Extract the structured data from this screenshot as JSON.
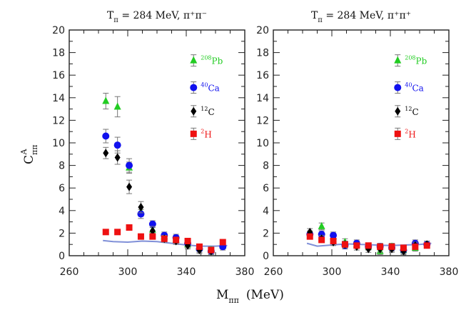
{
  "chart_data": {
    "type": "scatter",
    "xlabel_main": "M",
    "xlabel_sub": "ππ",
    "xlabel_unit": "(MeV)",
    "ylabel_main": "C",
    "ylabel_sup": "A",
    "ylabel_sub": "ππ",
    "xlim": [
      260,
      380
    ],
    "ylim": [
      0,
      20
    ],
    "xticks": [
      "260",
      "300",
      "340",
      "380"
    ],
    "yticks": [
      "0",
      "2",
      "4",
      "6",
      "8",
      "10",
      "12",
      "14",
      "16",
      "18",
      "20"
    ],
    "colors": {
      "Pb": "#22cc22",
      "Ca": "#1111ee",
      "C": "#000000",
      "H": "#ee1111",
      "curve": "#8090d8"
    },
    "panels": [
      {
        "title_T": "T",
        "title_Tsub": "π",
        "title_text": " = 284  MeV,  π⁺π⁻",
        "legend": [
          {
            "key": "Pb",
            "marker": "triangle",
            "sup": "208",
            "label": "Pb"
          },
          {
            "key": "Ca",
            "marker": "circle",
            "sup": "40",
            "label": "Ca"
          },
          {
            "key": "C",
            "marker": "diamond",
            "sup": "12",
            "label": "C"
          },
          {
            "key": "H",
            "marker": "square",
            "sup": "2",
            "label": "H"
          }
        ],
        "series": [
          {
            "key": "Pb",
            "marker": "triangle",
            "points": [
              [
                285,
                13.7,
                0.7
              ],
              [
                293,
                13.2,
                0.9
              ],
              [
                301,
                7.8,
                0.5
              ],
              [
                309,
                3.9,
                0.4
              ],
              [
                317,
                2.3,
                0.3
              ],
              [
                325,
                1.7,
                0.3
              ],
              [
                333,
                1.4,
                0.3
              ],
              [
                341,
                1.0,
                0.3
              ],
              [
                349,
                0.7,
                0.3
              ],
              [
                357,
                0.5,
                0.3
              ],
              [
                365,
                0.9,
                0.3
              ]
            ]
          },
          {
            "key": "Ca",
            "marker": "circle",
            "points": [
              [
                285,
                10.6,
                0.6
              ],
              [
                293,
                9.8,
                0.7
              ],
              [
                301,
                8.0,
                0.6
              ],
              [
                309,
                3.7,
                0.4
              ],
              [
                317,
                2.8,
                0.3
              ],
              [
                325,
                1.8,
                0.3
              ],
              [
                333,
                1.6,
                0.3
              ],
              [
                341,
                1.1,
                0.3
              ],
              [
                349,
                0.6,
                0.3
              ],
              [
                357,
                0.4,
                0.3
              ],
              [
                365,
                0.8,
                0.3
              ]
            ]
          },
          {
            "key": "C",
            "marker": "diamond",
            "points": [
              [
                285,
                9.1,
                0.5
              ],
              [
                293,
                8.7,
                0.6
              ],
              [
                301,
                6.1,
                0.6
              ],
              [
                309,
                4.3,
                0.5
              ],
              [
                317,
                2.2,
                0.4
              ],
              [
                325,
                1.5,
                0.3
              ],
              [
                333,
                1.3,
                0.3
              ],
              [
                341,
                0.9,
                0.3
              ],
              [
                349,
                0.5,
                0.3
              ],
              [
                357,
                0.4,
                0.3
              ]
            ]
          },
          {
            "key": "H",
            "marker": "square",
            "points": [
              [
                285,
                2.1,
                0.2
              ],
              [
                293,
                2.1,
                0.2
              ],
              [
                301,
                2.5,
                0.2
              ],
              [
                309,
                1.7,
                0.2
              ],
              [
                317,
                1.7,
                0.2
              ],
              [
                325,
                1.5,
                0.2
              ],
              [
                333,
                1.4,
                0.2
              ],
              [
                341,
                1.3,
                0.2
              ],
              [
                349,
                0.8,
                0.2
              ],
              [
                357,
                0.5,
                0.2
              ],
              [
                365,
                1.2,
                0.2
              ]
            ]
          }
        ],
        "curve": [
          [
            283,
            1.35
          ],
          [
            290,
            1.25
          ],
          [
            300,
            1.2
          ],
          [
            310,
            1.3
          ],
          [
            320,
            1.25
          ],
          [
            330,
            1.1
          ],
          [
            340,
            0.95
          ],
          [
            350,
            0.85
          ],
          [
            360,
            0.85
          ],
          [
            368,
            0.9
          ]
        ]
      },
      {
        "title_T": "T",
        "title_Tsub": "π",
        "title_text": " = 284  MeV,  π⁺π⁺",
        "legend": [
          {
            "key": "Pb",
            "marker": "triangle",
            "sup": "208",
            "label": "Pb"
          },
          {
            "key": "Ca",
            "marker": "circle",
            "sup": "40",
            "label": "Ca"
          },
          {
            "key": "C",
            "marker": "diamond",
            "sup": "12",
            "label": "C"
          },
          {
            "key": "H",
            "marker": "square",
            "sup": "2",
            "label": "H"
          }
        ],
        "series": [
          {
            "key": "Pb",
            "marker": "triangle",
            "points": [
              [
                293,
                2.6,
                0.3
              ],
              [
                301,
                1.7,
                0.3
              ],
              [
                309,
                1.2,
                0.3
              ],
              [
                317,
                1.0,
                0.3
              ],
              [
                325,
                0.8,
                0.3
              ],
              [
                333,
                0.4,
                0.3
              ],
              [
                341,
                0.8,
                0.3
              ],
              [
                349,
                0.5,
                0.3
              ],
              [
                357,
                0.7,
                0.3
              ]
            ]
          },
          {
            "key": "Ca",
            "marker": "circle",
            "points": [
              [
                285,
                1.9,
                0.3
              ],
              [
                293,
                1.9,
                0.3
              ],
              [
                301,
                1.8,
                0.3
              ],
              [
                309,
                0.9,
                0.3
              ],
              [
                317,
                1.1,
                0.3
              ],
              [
                325,
                0.8,
                0.3
              ],
              [
                333,
                0.8,
                0.3
              ],
              [
                341,
                0.7,
                0.3
              ],
              [
                349,
                0.5,
                0.3
              ],
              [
                357,
                1.1,
                0.3
              ],
              [
                365,
                1.0,
                0.3
              ]
            ]
          },
          {
            "key": "C",
            "marker": "diamond",
            "points": [
              [
                285,
                2.1,
                0.3
              ],
              [
                293,
                1.5,
                0.3
              ],
              [
                301,
                1.2,
                0.3
              ],
              [
                309,
                1.0,
                0.3
              ],
              [
                317,
                0.8,
                0.3
              ],
              [
                325,
                0.6,
                0.3
              ],
              [
                333,
                0.6,
                0.3
              ],
              [
                341,
                0.6,
                0.3
              ],
              [
                349,
                0.4,
                0.3
              ],
              [
                357,
                0.9,
                0.3
              ],
              [
                365,
                1.0,
                0.3
              ]
            ]
          },
          {
            "key": "H",
            "marker": "square",
            "points": [
              [
                285,
                1.7,
                0.2
              ],
              [
                293,
                1.4,
                0.2
              ],
              [
                301,
                1.3,
                0.2
              ],
              [
                309,
                1.0,
                0.2
              ],
              [
                317,
                0.9,
                0.2
              ],
              [
                325,
                0.9,
                0.2
              ],
              [
                333,
                0.8,
                0.2
              ],
              [
                341,
                0.8,
                0.2
              ],
              [
                349,
                0.7,
                0.2
              ],
              [
                357,
                0.8,
                0.2
              ],
              [
                365,
                0.9,
                0.2
              ]
            ]
          }
        ],
        "curve": [
          [
            283,
            1.1
          ],
          [
            290,
            0.85
          ],
          [
            300,
            0.95
          ],
          [
            310,
            1.05
          ],
          [
            320,
            1.0
          ],
          [
            330,
            0.95
          ],
          [
            340,
            0.9
          ],
          [
            350,
            0.95
          ],
          [
            360,
            1.0
          ],
          [
            368,
            1.1
          ]
        ]
      }
    ]
  }
}
